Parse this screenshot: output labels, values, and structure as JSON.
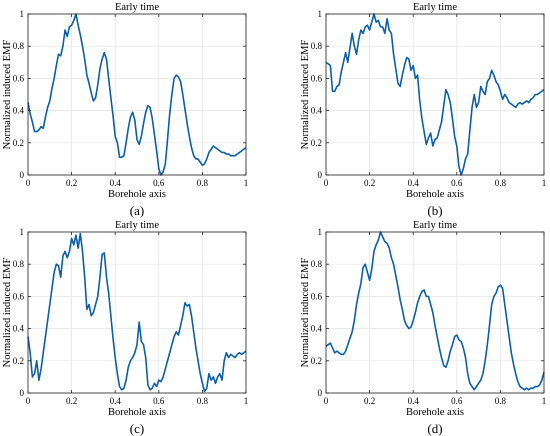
{
  "chart_data": [
    {
      "type": "line",
      "panel_label": "(a)",
      "title": "Early time",
      "xlabel": "Borehole axis",
      "ylabel": "Normalized induced EMF",
      "xlim": [
        0,
        1
      ],
      "ylim": [
        0,
        1
      ],
      "xticks": [
        "0",
        "0.2",
        "0.4",
        "0.6",
        "0.8",
        "1"
      ],
      "yticks": [
        "0",
        "0.2",
        "0.4",
        "0.6",
        "0.8",
        "1"
      ],
      "grid": true,
      "color": "#0b5fa5",
      "x": [
        0,
        0.01,
        0.02,
        0.03,
        0.04,
        0.05,
        0.06,
        0.07,
        0.08,
        0.09,
        0.1,
        0.11,
        0.12,
        0.13,
        0.14,
        0.15,
        0.16,
        0.17,
        0.18,
        0.19,
        0.2,
        0.21,
        0.22,
        0.23,
        0.24,
        0.25,
        0.26,
        0.27,
        0.28,
        0.29,
        0.3,
        0.31,
        0.32,
        0.33,
        0.34,
        0.35,
        0.36,
        0.37,
        0.38,
        0.39,
        0.4,
        0.41,
        0.42,
        0.43,
        0.44,
        0.45,
        0.46,
        0.47,
        0.48,
        0.49,
        0.5,
        0.51,
        0.52,
        0.53,
        0.54,
        0.55,
        0.56,
        0.57,
        0.58,
        0.59,
        0.6,
        0.61,
        0.62,
        0.63,
        0.64,
        0.65,
        0.66,
        0.67,
        0.68,
        0.69,
        0.7,
        0.71,
        0.72,
        0.73,
        0.74,
        0.75,
        0.76,
        0.77,
        0.78,
        0.79,
        0.8,
        0.81,
        0.82,
        0.83,
        0.84,
        0.85,
        0.86,
        0.87,
        0.88,
        0.89,
        0.9,
        0.91,
        0.92,
        0.93,
        0.94,
        0.95,
        0.96,
        0.97,
        0.98,
        0.99,
        1.0
      ],
      "y": [
        0.45,
        0.38,
        0.33,
        0.27,
        0.27,
        0.28,
        0.3,
        0.29,
        0.36,
        0.42,
        0.46,
        0.54,
        0.6,
        0.68,
        0.75,
        0.74,
        0.8,
        0.9,
        0.86,
        0.92,
        0.93,
        0.96,
        1.0,
        0.93,
        0.87,
        0.8,
        0.72,
        0.62,
        0.57,
        0.51,
        0.46,
        0.48,
        0.56,
        0.66,
        0.72,
        0.76,
        0.72,
        0.6,
        0.48,
        0.37,
        0.24,
        0.2,
        0.11,
        0.11,
        0.12,
        0.2,
        0.29,
        0.36,
        0.39,
        0.34,
        0.22,
        0.19,
        0.24,
        0.32,
        0.39,
        0.43,
        0.42,
        0.35,
        0.25,
        0.15,
        0.04,
        0.0,
        0.02,
        0.07,
        0.22,
        0.38,
        0.5,
        0.6,
        0.62,
        0.61,
        0.58,
        0.5,
        0.41,
        0.32,
        0.24,
        0.17,
        0.12,
        0.1,
        0.1,
        0.08,
        0.06,
        0.07,
        0.1,
        0.14,
        0.16,
        0.18,
        0.17,
        0.16,
        0.15,
        0.14,
        0.14,
        0.13,
        0.13,
        0.12,
        0.12,
        0.12,
        0.13,
        0.14,
        0.15,
        0.16,
        0.17
      ]
    },
    {
      "type": "line",
      "panel_label": "(b)",
      "title": "Early time",
      "xlabel": "Borehole axis",
      "ylabel": "Normalized induced EMF",
      "xlim": [
        0,
        1
      ],
      "ylim": [
        0,
        1
      ],
      "xticks": [
        "0",
        "0.2",
        "0.4",
        "0.6",
        "0.8",
        "1"
      ],
      "yticks": [
        "0",
        "0.2",
        "0.4",
        "0.6",
        "0.8",
        "1"
      ],
      "grid": true,
      "color": "#0b5fa5",
      "x": [
        0,
        0.01,
        0.02,
        0.03,
        0.04,
        0.05,
        0.06,
        0.07,
        0.08,
        0.09,
        0.1,
        0.11,
        0.12,
        0.13,
        0.14,
        0.15,
        0.16,
        0.17,
        0.18,
        0.19,
        0.2,
        0.21,
        0.22,
        0.23,
        0.24,
        0.25,
        0.26,
        0.27,
        0.28,
        0.29,
        0.3,
        0.31,
        0.32,
        0.33,
        0.34,
        0.35,
        0.36,
        0.37,
        0.38,
        0.39,
        0.4,
        0.41,
        0.42,
        0.43,
        0.44,
        0.45,
        0.46,
        0.47,
        0.48,
        0.49,
        0.5,
        0.51,
        0.52,
        0.53,
        0.54,
        0.55,
        0.56,
        0.57,
        0.58,
        0.59,
        0.6,
        0.61,
        0.62,
        0.63,
        0.64,
        0.65,
        0.66,
        0.67,
        0.68,
        0.69,
        0.7,
        0.71,
        0.72,
        0.73,
        0.74,
        0.75,
        0.76,
        0.77,
        0.78,
        0.79,
        0.8,
        0.81,
        0.82,
        0.83,
        0.84,
        0.85,
        0.86,
        0.87,
        0.88,
        0.89,
        0.9,
        0.91,
        0.92,
        0.93,
        0.94,
        0.95,
        0.96,
        0.97,
        0.98,
        0.99,
        1.0
      ],
      "y": [
        0.7,
        0.69,
        0.68,
        0.52,
        0.52,
        0.55,
        0.56,
        0.64,
        0.7,
        0.76,
        0.7,
        0.79,
        0.88,
        0.8,
        0.75,
        0.84,
        0.9,
        0.88,
        0.92,
        0.93,
        0.9,
        0.95,
        1.0,
        0.95,
        0.96,
        0.92,
        0.92,
        0.88,
        0.97,
        0.9,
        0.88,
        0.75,
        0.66,
        0.57,
        0.55,
        0.62,
        0.68,
        0.73,
        0.72,
        0.65,
        0.68,
        0.6,
        0.62,
        0.46,
        0.35,
        0.27,
        0.19,
        0.23,
        0.26,
        0.18,
        0.22,
        0.23,
        0.28,
        0.33,
        0.43,
        0.53,
        0.5,
        0.45,
        0.35,
        0.24,
        0.18,
        0.05,
        0.0,
        0.04,
        0.1,
        0.13,
        0.28,
        0.42,
        0.5,
        0.42,
        0.45,
        0.55,
        0.52,
        0.5,
        0.58,
        0.6,
        0.65,
        0.62,
        0.58,
        0.56,
        0.52,
        0.47,
        0.5,
        0.48,
        0.45,
        0.44,
        0.43,
        0.42,
        0.44,
        0.45,
        0.44,
        0.45,
        0.46,
        0.45,
        0.47,
        0.48,
        0.5,
        0.5,
        0.51,
        0.52,
        0.53
      ]
    },
    {
      "type": "line",
      "panel_label": "(c)",
      "title": "Early time",
      "xlabel": "Borehole axis",
      "ylabel": "Normalized induced EMF",
      "xlim": [
        0,
        1
      ],
      "ylim": [
        0,
        1
      ],
      "xticks": [
        "0",
        "0.2",
        "0.4",
        "0.6",
        "0.8",
        "1"
      ],
      "yticks": [
        "0",
        "0.2",
        "0.4",
        "0.6",
        "0.8",
        "1"
      ],
      "grid": true,
      "color": "#0b5fa5",
      "x": [
        0,
        0.01,
        0.02,
        0.03,
        0.04,
        0.05,
        0.06,
        0.07,
        0.08,
        0.09,
        0.1,
        0.11,
        0.12,
        0.13,
        0.14,
        0.15,
        0.16,
        0.17,
        0.18,
        0.19,
        0.2,
        0.21,
        0.22,
        0.23,
        0.24,
        0.25,
        0.26,
        0.27,
        0.28,
        0.29,
        0.3,
        0.31,
        0.32,
        0.33,
        0.34,
        0.35,
        0.36,
        0.37,
        0.38,
        0.39,
        0.4,
        0.41,
        0.42,
        0.43,
        0.44,
        0.45,
        0.46,
        0.47,
        0.48,
        0.49,
        0.5,
        0.51,
        0.52,
        0.53,
        0.54,
        0.55,
        0.56,
        0.57,
        0.58,
        0.59,
        0.6,
        0.61,
        0.62,
        0.63,
        0.64,
        0.65,
        0.66,
        0.67,
        0.68,
        0.69,
        0.7,
        0.71,
        0.72,
        0.73,
        0.74,
        0.75,
        0.76,
        0.77,
        0.78,
        0.79,
        0.8,
        0.81,
        0.82,
        0.83,
        0.84,
        0.85,
        0.86,
        0.87,
        0.88,
        0.89,
        0.9,
        0.91,
        0.92,
        0.93,
        0.94,
        0.95,
        0.96,
        0.97,
        0.98,
        0.99,
        1.0
      ],
      "y": [
        0.35,
        0.25,
        0.1,
        0.12,
        0.2,
        0.08,
        0.15,
        0.25,
        0.35,
        0.45,
        0.55,
        0.65,
        0.75,
        0.8,
        0.79,
        0.72,
        0.85,
        0.88,
        0.84,
        0.88,
        0.96,
        0.92,
        0.98,
        0.9,
        0.99,
        0.88,
        0.72,
        0.52,
        0.55,
        0.48,
        0.5,
        0.55,
        0.6,
        0.72,
        0.86,
        0.87,
        0.72,
        0.62,
        0.48,
        0.34,
        0.22,
        0.12,
        0.04,
        0.02,
        0.03,
        0.08,
        0.16,
        0.2,
        0.22,
        0.25,
        0.3,
        0.44,
        0.32,
        0.3,
        0.22,
        0.05,
        0.02,
        0.03,
        0.06,
        0.04,
        0.08,
        0.07,
        0.1,
        0.15,
        0.2,
        0.25,
        0.3,
        0.35,
        0.38,
        0.36,
        0.42,
        0.48,
        0.56,
        0.54,
        0.55,
        0.48,
        0.38,
        0.28,
        0.2,
        0.12,
        0.06,
        0.01,
        0.03,
        0.12,
        0.08,
        0.1,
        0.06,
        0.1,
        0.12,
        0.08,
        0.2,
        0.25,
        0.22,
        0.24,
        0.23,
        0.22,
        0.24,
        0.25,
        0.24,
        0.25,
        0.26
      ]
    },
    {
      "type": "line",
      "panel_label": "(d)",
      "title": "Early time",
      "xlabel": "Borehole axis",
      "ylabel": "Normalized induced EMF",
      "xlim": [
        0,
        1
      ],
      "ylim": [
        0,
        1
      ],
      "xticks": [
        "0",
        "0.2",
        "0.4",
        "0.6",
        "0.8",
        "1"
      ],
      "yticks": [
        "0",
        "0.2",
        "0.4",
        "0.6",
        "0.8",
        "1"
      ],
      "grid": true,
      "color": "#0b5fa5",
      "x": [
        0,
        0.01,
        0.02,
        0.03,
        0.04,
        0.05,
        0.06,
        0.07,
        0.08,
        0.09,
        0.1,
        0.11,
        0.12,
        0.13,
        0.14,
        0.15,
        0.16,
        0.17,
        0.18,
        0.19,
        0.2,
        0.21,
        0.22,
        0.23,
        0.24,
        0.25,
        0.26,
        0.27,
        0.28,
        0.29,
        0.3,
        0.31,
        0.32,
        0.33,
        0.34,
        0.35,
        0.36,
        0.37,
        0.38,
        0.39,
        0.4,
        0.41,
        0.42,
        0.43,
        0.44,
        0.45,
        0.46,
        0.47,
        0.48,
        0.49,
        0.5,
        0.51,
        0.52,
        0.53,
        0.54,
        0.55,
        0.56,
        0.57,
        0.58,
        0.59,
        0.6,
        0.61,
        0.62,
        0.63,
        0.64,
        0.65,
        0.66,
        0.67,
        0.68,
        0.69,
        0.7,
        0.71,
        0.72,
        0.73,
        0.74,
        0.75,
        0.76,
        0.77,
        0.78,
        0.79,
        0.8,
        0.81,
        0.82,
        0.83,
        0.84,
        0.85,
        0.86,
        0.87,
        0.88,
        0.89,
        0.9,
        0.91,
        0.92,
        0.93,
        0.94,
        0.95,
        0.96,
        0.97,
        0.98,
        0.99,
        1.0
      ],
      "y": [
        0.29,
        0.3,
        0.31,
        0.28,
        0.25,
        0.26,
        0.25,
        0.24,
        0.24,
        0.26,
        0.3,
        0.34,
        0.38,
        0.45,
        0.55,
        0.62,
        0.68,
        0.78,
        0.8,
        0.75,
        0.7,
        0.77,
        0.88,
        0.92,
        0.95,
        1.0,
        0.97,
        0.94,
        0.93,
        0.9,
        0.84,
        0.8,
        0.73,
        0.66,
        0.58,
        0.52,
        0.45,
        0.42,
        0.4,
        0.41,
        0.45,
        0.5,
        0.56,
        0.6,
        0.63,
        0.64,
        0.6,
        0.6,
        0.55,
        0.5,
        0.42,
        0.35,
        0.28,
        0.22,
        0.17,
        0.16,
        0.2,
        0.26,
        0.3,
        0.35,
        0.36,
        0.33,
        0.32,
        0.28,
        0.22,
        0.12,
        0.06,
        0.04,
        0.02,
        0.04,
        0.06,
        0.08,
        0.12,
        0.2,
        0.3,
        0.42,
        0.55,
        0.6,
        0.62,
        0.66,
        0.67,
        0.65,
        0.55,
        0.45,
        0.35,
        0.25,
        0.18,
        0.12,
        0.07,
        0.04,
        0.03,
        0.02,
        0.03,
        0.02,
        0.03,
        0.03,
        0.04,
        0.04,
        0.05,
        0.08,
        0.13
      ]
    }
  ]
}
